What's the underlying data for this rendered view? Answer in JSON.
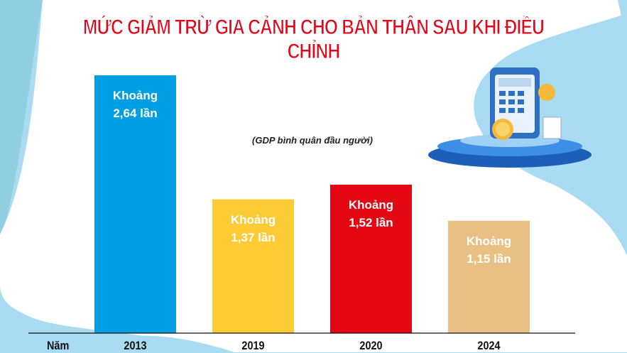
{
  "title": "MỨC GIẢM TRỪ GIA CẢNH CHO BẢN THÂN SAU KHI ĐIỀU CHỈNH",
  "subtitle": "(GDP bình quân đầu người)",
  "chart_data": {
    "type": "bar",
    "title": "MỨC GIẢM TRỪ GIA CẢNH CHO BẢN THÂN SAU KHI ĐIỀU CHỈNH",
    "subtitle": "(GDP bình quân đầu người)",
    "xlabel": "Năm",
    "ylabel": "",
    "categories": [
      "2013",
      "2019",
      "2020",
      "2024"
    ],
    "values": [
      2.64,
      1.37,
      1.52,
      1.15
    ],
    "labels": [
      {
        "line1": "Khoảng",
        "line2": "2,64 lần"
      },
      {
        "line1": "Khoảng",
        "line2": "1,37 lần"
      },
      {
        "line1": "Khoảng",
        "line2": "1,52 lần"
      },
      {
        "line1": "Khoảng",
        "line2": "1,15 lần"
      }
    ],
    "colors": [
      "#009fe3",
      "#fdcb35",
      "#e30613",
      "#e8c084"
    ],
    "ylim": [
      0,
      2.75
    ],
    "grid": false
  }
}
